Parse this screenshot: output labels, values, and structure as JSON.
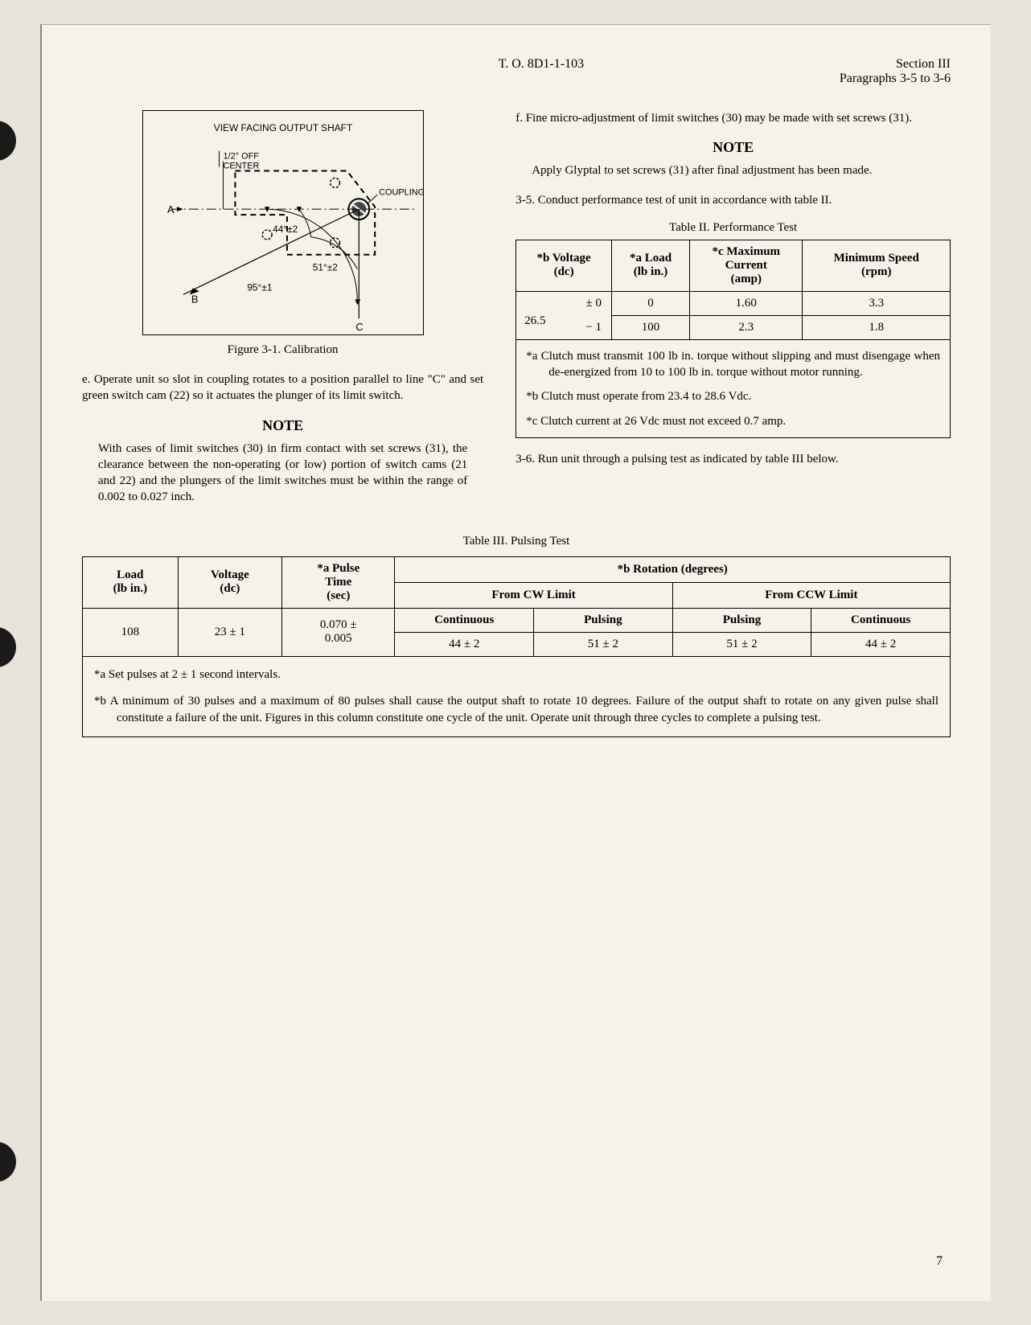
{
  "header": {
    "doc_id": "T. O. 8D1-1-103",
    "section": "Section III",
    "paragraphs": "Paragraphs 3-5 to 3-6"
  },
  "diagram": {
    "title": "VIEW FACING OUTPUT SHAFT",
    "label_off_center": "1/2° OFF\nCENTER",
    "label_coupling": "COUPLING",
    "label_A": "A",
    "label_B": "B",
    "label_C": "C",
    "angle_44": "44°±2",
    "angle_51": "51°±2",
    "angle_95": "95°±1"
  },
  "figure_caption": "Figure 3-1.  Calibration",
  "para_e": "e.  Operate unit so slot in coupling rotates to a position parallel to line \"C\" and set green switch cam (22) so it actuates the plunger of its limit switch.",
  "note1_heading": "NOTE",
  "note1_text": "With cases of limit switches (30) in firm contact with set screws (31), the clearance between the non-operating (or low) portion of switch cams (21 and 22) and the plungers of the limit switches must be within the range of 0.002 to 0.027 inch.",
  "para_f": "f.  Fine micro-adjustment of limit switches (30) may be made with set screws (31).",
  "note2_heading": "NOTE",
  "note2_text": "Apply Glyptal to set screws (31) after final adjustment has been made.",
  "para_3_5": "3-5.  Conduct performance test of unit in accordance with table II.",
  "table2": {
    "title": "Table II.  Performance Test",
    "headers": {
      "voltage": "*b Voltage\n(dc)",
      "load": "*a Load\n(lb in.)",
      "current": "*c Maximum\nCurrent\n(amp)",
      "speed": "Minimum Speed\n(rpm)"
    },
    "voltage_val": "26.5",
    "voltage_tol_top": "± 0",
    "voltage_tol_bot": "− 1",
    "rows": [
      {
        "load": "0",
        "current": "1.60",
        "speed": "3.3"
      },
      {
        "load": "100",
        "current": "2.3",
        "speed": "1.8"
      }
    ],
    "notes": {
      "a": "*a  Clutch must transmit 100 lb in. torque without slipping and must disengage when de-energized from 10 to 100 lb in. torque without motor running.",
      "b": "*b  Clutch must operate from 23.4 to 28.6 Vdc.",
      "c": "*c  Clutch current at 26 Vdc must not exceed 0.7 amp."
    }
  },
  "para_3_6": "3-6.  Run unit through a pulsing test as indicated by table III below.",
  "table3": {
    "title": "Table III.  Pulsing Test",
    "headers": {
      "load": "Load\n(lb in.)",
      "voltage": "Voltage\n(dc)",
      "pulse": "*a Pulse\nTime\n(sec)",
      "rotation": "*b Rotation (degrees)",
      "cw": "From CW Limit",
      "ccw": "From CCW Limit",
      "continuous": "Continuous",
      "pulsing": "Pulsing"
    },
    "row": {
      "load": "108",
      "voltage": "23 ± 1",
      "pulse": "0.070 ±\n0.005",
      "cw_cont": "44 ± 2",
      "cw_puls": "51 ± 2",
      "ccw_puls": "51 ± 2",
      "ccw_cont": "44 ± 2"
    },
    "notes": {
      "a": "*a  Set pulses at 2 ± 1 second intervals.",
      "b": "*b  A minimum of 30 pulses and a maximum of 80 pulses shall cause the output shaft to rotate 10 degrees. Failure of the output shaft to rotate on any given pulse shall constitute a failure of the unit. Figures in this column constitute one cycle of the unit. Operate unit through three cycles to complete a pulsing test."
    }
  },
  "page_number": "7",
  "colors": {
    "page_bg": "#f5f2ea",
    "body_bg": "#e8e4dc",
    "text": "#000000",
    "border": "#000000"
  }
}
